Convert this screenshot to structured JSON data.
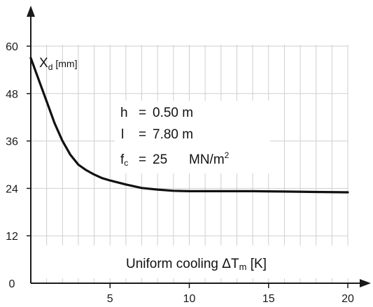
{
  "chart_data": {
    "type": "line",
    "ylabel_main": "X",
    "ylabel_sub": "d",
    "ylabel_unit": "[mm]",
    "xlabel": "Uniform cooling ΔTm [K]",
    "xlabel_parts": [
      "Uniform cooling ",
      "Δ",
      "T",
      "m",
      " [K]"
    ],
    "xlim": [
      0,
      20
    ],
    "ylim": [
      0,
      60
    ],
    "xticks": [
      "5",
      "10",
      "15",
      "20"
    ],
    "xtick_values": [
      5,
      10,
      15,
      20
    ],
    "yticks": [
      "0",
      "12",
      "24",
      "36",
      "48",
      "60"
    ],
    "ytick_values": [
      0,
      12,
      24,
      36,
      48,
      60
    ],
    "grid": true,
    "params": {
      "h": {
        "name": "h",
        "eq": "=",
        "value": "0.50 m"
      },
      "l": {
        "name": "l",
        "eq": "=",
        "value": "7.80 m"
      },
      "fc": {
        "name": "f",
        "sub": "c",
        "eq": "=",
        "value": "25",
        "unit": "MN/m",
        "sup": "2"
      }
    },
    "series": [
      {
        "x": [
          0,
          0.5,
          1,
          1.5,
          2,
          2.5,
          3,
          3.5,
          4,
          4.5,
          5,
          6,
          7,
          8,
          9,
          10,
          12,
          14,
          16,
          18,
          20
        ],
        "y": [
          57,
          51.5,
          46,
          40.5,
          36,
          32.5,
          30,
          28.6,
          27.5,
          26.6,
          26,
          25,
          24.1,
          23.7,
          23.4,
          23.3,
          23.3,
          23.3,
          23.2,
          23.1,
          23
        ]
      }
    ],
    "colors": {
      "line": "#111111",
      "grid": "#cfcfcf",
      "axis": "#1a1a1a"
    }
  }
}
